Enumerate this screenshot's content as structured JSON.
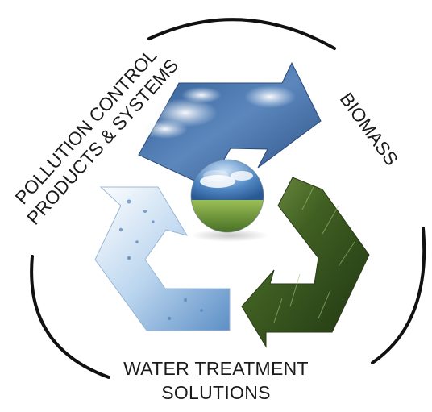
{
  "labels": {
    "pollution_line1": "POLLUTION CONTROL",
    "pollution_line2": "PRODUCTS & SYSTEMS",
    "biomass": "BIOMASS",
    "water_line1": "WATER  TREATMENT",
    "water_line2": "SOLUTIONS"
  },
  "colors": {
    "sky": "#3f6fa8",
    "grass": "#4e6b2c",
    "water": "#7aa9d8",
    "outline": "#111111"
  },
  "icons": [
    "recycle-symbol",
    "earth-globe-sphere"
  ]
}
